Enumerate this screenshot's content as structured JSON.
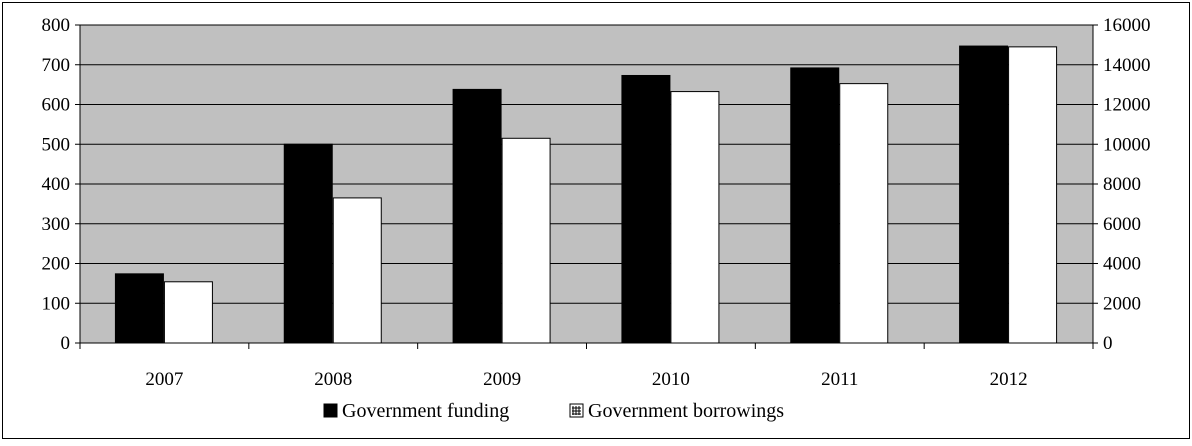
{
  "chart_data": {
    "type": "bar",
    "title": "",
    "xlabel": "",
    "ylabel": "",
    "categories": [
      "2007",
      "2008",
      "2009",
      "2010",
      "2011",
      "2012"
    ],
    "series": [
      {
        "name": "Government funding",
        "axis": "left",
        "color": "#000000",
        "values": [
          174,
          500,
          638,
          673,
          692,
          747
        ]
      },
      {
        "name": "Government borrowings",
        "axis": "right",
        "color": "#ffffff",
        "values": [
          3080,
          7300,
          10300,
          12650,
          13050,
          14900
        ]
      }
    ],
    "ylim_left": [
      0,
      800
    ],
    "yticks_left": [
      "0",
      "100",
      "200",
      "300",
      "400",
      "500",
      "600",
      "700",
      "800"
    ],
    "ylim_right": [
      0,
      16000
    ],
    "yticks_right": [
      "0",
      "2000",
      "4000",
      "6000",
      "8000",
      "10000",
      "12000",
      "14000",
      "16000"
    ],
    "plot_background": "#c0c0c0",
    "grid": true,
    "legend_position": "bottom"
  }
}
